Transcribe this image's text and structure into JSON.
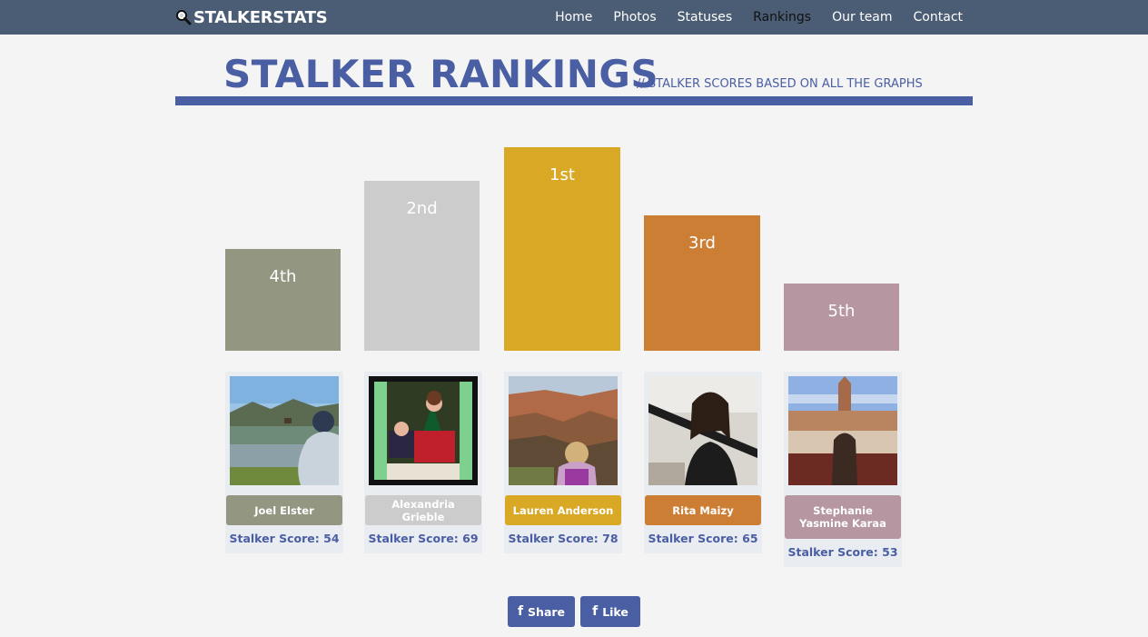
{
  "brand": {
    "name": "STALKERSTATS",
    "icon": "magnifier-icon"
  },
  "nav": {
    "items": [
      {
        "label": "Home"
      },
      {
        "label": "Photos"
      },
      {
        "label": "Statuses"
      },
      {
        "label": "Rankings",
        "active": true
      },
      {
        "label": "Our team"
      },
      {
        "label": "Contact"
      }
    ]
  },
  "header": {
    "title": "STALKER RANKINGS",
    "subtitle": "// STALKER SCORES BASED ON ALL THE GRAPHS"
  },
  "rankings": [
    {
      "rank": "4th",
      "name": "Joel Elster",
      "score_label": "Stalker Score: 54",
      "score": 54,
      "color": "#939680"
    },
    {
      "rank": "2nd",
      "name": "Alexandria Grieble",
      "score_label": "Stalker Score: 69",
      "score": 69,
      "color": "#cccccc"
    },
    {
      "rank": "1st",
      "name": "Lauren Anderson",
      "score_label": "Stalker Score: 78",
      "score": 78,
      "color": "#d9a825"
    },
    {
      "rank": "3rd",
      "name": "Rita Maizy",
      "score_label": "Stalker Score: 65",
      "score": 65,
      "color": "#cc7e35"
    },
    {
      "rank": "5th",
      "name": "Stephanie Yasmine Karaa",
      "score_label": "Stalker Score: 53",
      "score": 53,
      "color": "#b596a1"
    }
  ],
  "social": {
    "share_label": "Share",
    "like_label": "Like",
    "icon": "facebook-f-icon"
  },
  "colors": {
    "nav_bg": "#4a5d74",
    "accent": "#4a5ea3",
    "page_bg": "#f4f4f4"
  }
}
